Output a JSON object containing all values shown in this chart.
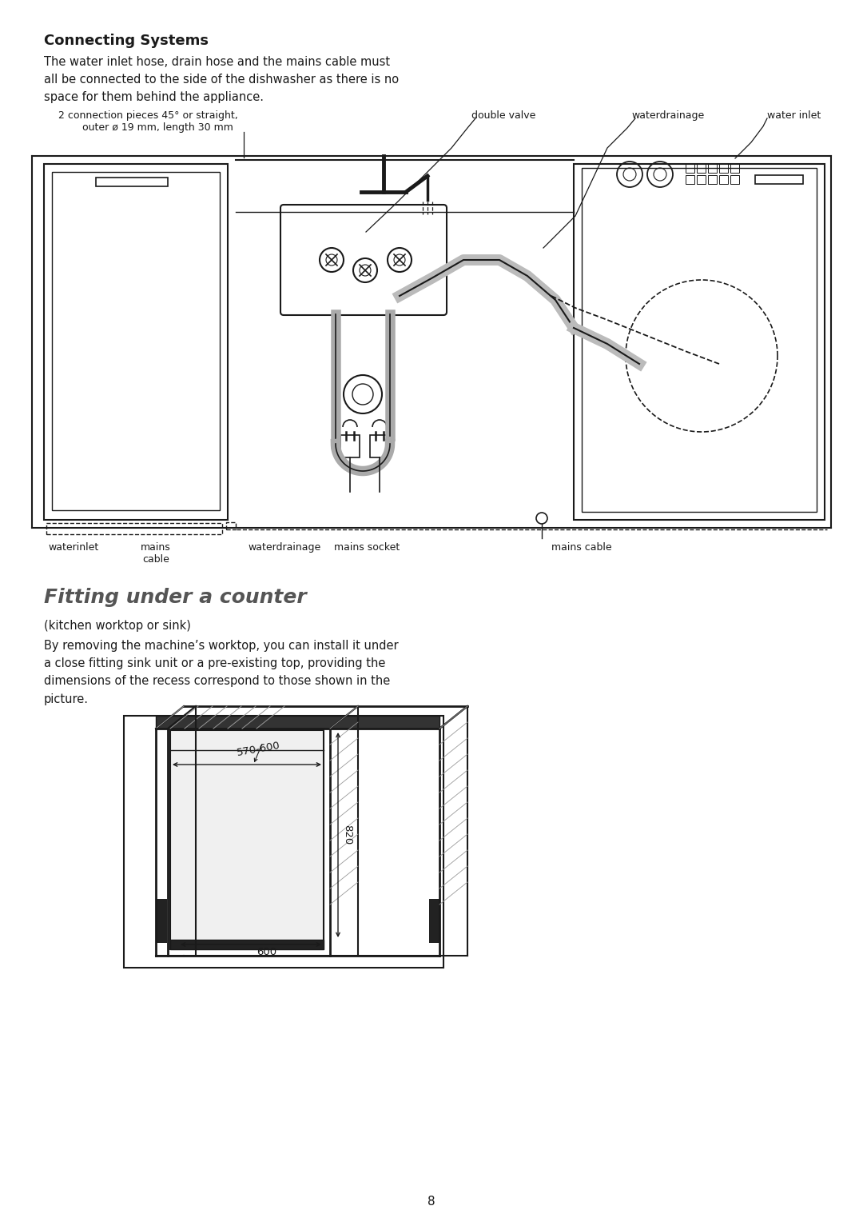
{
  "bg_color": "#ffffff",
  "page_number": "8",
  "section1_title": "Connecting Systems",
  "section1_body": "The water inlet hose, drain hose and the mains cable must\nall be connected to the side of the dishwasher as there is no\nspace for them behind the appliance.",
  "label_conn_pieces": "2 connection pieces 45° or straight,\n      outer ø 19 mm, length 30 mm",
  "label_double_valve": "double valve",
  "label_waterdrainage_top": "waterdrainage",
  "label_water_inlet": "water inlet",
  "label_waterinlet_bot": "waterinlet",
  "label_mains_cable_bot": "mains\ncable",
  "label_waterdrainage_bot": "waterdrainage",
  "label_mains_socket": "mains socket",
  "label_mains_cable_right": "mains cable",
  "section2_title": "Fitting under a counter",
  "section2_sub": "(kitchen worktop or sink)",
  "section2_body": "By removing the machine’s worktop, you can install it under\na close fitting sink unit or a pre-existing top, providing the\ndimensions of the recess correspond to those shown in the\npicture.",
  "dim_width": "570-600",
  "dim_height": "820",
  "dim_depth": "600",
  "text_color": "#1a1a1a",
  "line_color": "#1a1a1a",
  "gray_color": "#888888",
  "light_gray": "#cccccc",
  "title2_color": "#555555"
}
